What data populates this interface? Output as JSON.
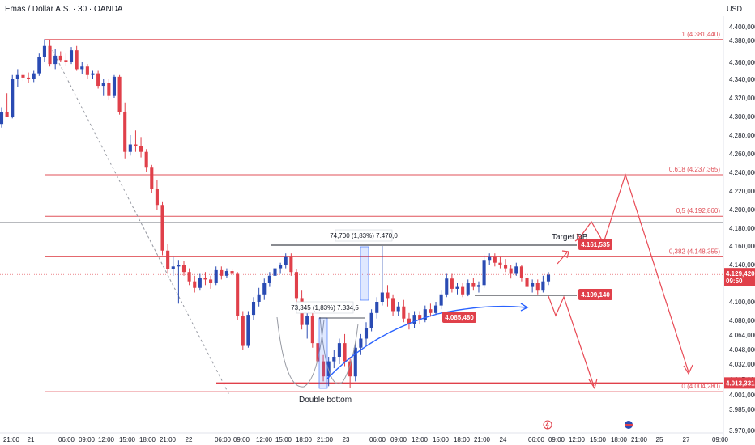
{
  "header": {
    "title": "Emas / Dollar A.S. · 30 · OANDA",
    "currency": "USD"
  },
  "chart_data": {
    "type": "candlestick",
    "y_axis": {
      "ylim": [
        3970.0,
        4410.0
      ],
      "ticks": [
        "4.400,000",
        "4.380,000",
        "4.360,000",
        "4.340,000",
        "4.320,000",
        "4.300,000",
        "4.280,000",
        "4.260,000",
        "4.240,000",
        "4.220,000",
        "4.200,000",
        "4.180,000",
        "4.160,000",
        "4.140,000",
        "4.120,000",
        "4.100,000",
        "4.080,000",
        "4.064,000",
        "4.048,000",
        "4.032,000",
        "4.017,000",
        "4.001,000",
        "3.985,000",
        "3.970,000"
      ]
    },
    "x_axis": {
      "ticks": [
        "21:00",
        "21",
        "06:00",
        "09:00",
        "12:00",
        "15:00",
        "18:00",
        "21:00",
        "22",
        "06:00",
        "09:00",
        "12:00",
        "15:00",
        "18:00",
        "21:00",
        "23",
        "06:00",
        "09:00",
        "12:00",
        "15:00",
        "18:00",
        "21:00",
        "24",
        "06:00",
        "09:00",
        "12:00",
        "15:00",
        "18:00",
        "21:00",
        "25",
        "27",
        "09:00"
      ]
    },
    "fib_levels": [
      {
        "label": "1 (4.381,440)",
        "value": 4381.44
      },
      {
        "label": "0,618 (4.237,365)",
        "value": 4237.365
      },
      {
        "label": "0,5 (4.192,860)",
        "value": 4192.86
      },
      {
        "label": "0,382 (4.148,355)",
        "value": 4148.355
      },
      {
        "label": "0 (4.004,280)",
        "value": 4004.28
      }
    ],
    "horizontal_line": 4186.0,
    "price_labels": [
      {
        "label": "4.161,535",
        "value": 4161.535
      },
      {
        "label": "4.109,140",
        "value": 4109.14
      },
      {
        "label": "4.085,480",
        "value": 4085.48
      },
      {
        "label": "4.013,331",
        "value": 4013.331
      }
    ],
    "current_price": {
      "label": "4.129,420",
      "countdown": "09:50",
      "value": 4129.42
    },
    "annotations": {
      "target": "Target DB",
      "double_bottom": "Double bottom",
      "measure_1": "74,700 (1,83%) 7.470,0",
      "measure_2": "73,345 (1,83%) 7.334,5"
    },
    "colors": {
      "up": "#2a4bb3",
      "down": "#e0404a",
      "fib": "#e0525a",
      "projection": "#e84a55",
      "curve": "#2962ff"
    },
    "candles": [
      [
        4292,
        4310,
        4288,
        4305
      ],
      [
        4305,
        4325,
        4300,
        4300
      ],
      [
        4300,
        4345,
        4298,
        4340
      ],
      [
        4340,
        4352,
        4332,
        4345
      ],
      [
        4345,
        4350,
        4338,
        4342
      ],
      [
        4342,
        4348,
        4336,
        4340
      ],
      [
        4340,
        4350,
        4337,
        4347
      ],
      [
        4347,
        4368,
        4344,
        4365
      ],
      [
        4365,
        4382,
        4360,
        4375
      ],
      [
        4375,
        4380,
        4355,
        4358
      ],
      [
        4358,
        4372,
        4352,
        4366
      ],
      [
        4366,
        4370,
        4360,
        4362
      ],
      [
        4362,
        4368,
        4356,
        4360
      ],
      [
        4360,
        4374,
        4358,
        4371
      ],
      [
        4371,
        4375,
        4350,
        4352
      ],
      [
        4352,
        4360,
        4346,
        4355
      ],
      [
        4355,
        4358,
        4340,
        4345
      ],
      [
        4345,
        4350,
        4340,
        4347
      ],
      [
        4347,
        4350,
        4330,
        4333
      ],
      [
        4333,
        4340,
        4322,
        4336
      ],
      [
        4336,
        4340,
        4318,
        4322
      ],
      [
        4322,
        4345,
        4320,
        4343
      ],
      [
        4343,
        4345,
        4302,
        4305
      ],
      [
        4305,
        4315,
        4255,
        4262
      ],
      [
        4262,
        4280,
        4258,
        4270
      ],
      [
        4270,
        4285,
        4262,
        4268
      ],
      [
        4268,
        4278,
        4256,
        4262
      ],
      [
        4262,
        4265,
        4240,
        4245
      ],
      [
        4245,
        4248,
        4218,
        4222
      ],
      [
        4222,
        4232,
        4200,
        4205
      ],
      [
        4205,
        4208,
        4150,
        4155
      ],
      [
        4155,
        4162,
        4130,
        4135
      ],
      [
        4135,
        4148,
        4128,
        4138
      ],
      [
        4138,
        4145,
        4098,
        4140
      ],
      [
        4140,
        4144,
        4128,
        4132
      ],
      [
        4132,
        4136,
        4118,
        4122
      ],
      [
        4122,
        4128,
        4110,
        4115
      ],
      [
        4115,
        4130,
        4112,
        4126
      ],
      [
        4126,
        4132,
        4118,
        4124
      ],
      [
        4124,
        4128,
        4114,
        4120
      ],
      [
        4120,
        4138,
        4118,
        4134
      ],
      [
        4134,
        4138,
        4124,
        4128
      ],
      [
        4128,
        4136,
        4126,
        4133
      ],
      [
        4133,
        4135,
        4128,
        4130
      ],
      [
        4130,
        4132,
        4080,
        4085
      ],
      [
        4085,
        4090,
        4048,
        4052
      ],
      [
        4052,
        4090,
        4050,
        4086
      ],
      [
        4086,
        4105,
        4080,
        4100
      ],
      [
        4100,
        4115,
        4095,
        4108
      ],
      [
        4108,
        4125,
        4102,
        4120
      ],
      [
        4120,
        4132,
        4116,
        4128
      ],
      [
        4128,
        4140,
        4124,
        4136
      ],
      [
        4136,
        4142,
        4130,
        4140
      ],
      [
        4140,
        4152,
        4136,
        4148
      ],
      [
        4148,
        4152,
        4128,
        4132
      ],
      [
        4132,
        4135,
        4100,
        4104
      ],
      [
        4104,
        4112,
        4070,
        4075
      ],
      [
        4075,
        4090,
        4060,
        4085
      ],
      [
        4085,
        4092,
        4050,
        4055
      ],
      [
        4055,
        4060,
        4030,
        4035
      ],
      [
        4035,
        4042,
        4015,
        4020
      ],
      [
        4020,
        4040,
        4010,
        4035
      ],
      [
        4035,
        4048,
        4028,
        4040
      ],
      [
        4040,
        4060,
        4032,
        4055
      ],
      [
        4055,
        4065,
        4030,
        4035
      ],
      [
        4035,
        4040,
        4008,
        4020
      ],
      [
        4020,
        4055,
        4015,
        4050
      ],
      [
        4050,
        4065,
        4042,
        4060
      ],
      [
        4060,
        4078,
        4052,
        4072
      ],
      [
        4072,
        4092,
        4068,
        4088
      ],
      [
        4088,
        4105,
        4082,
        4100
      ],
      [
        4100,
        4160,
        4096,
        4110
      ],
      [
        4110,
        4118,
        4095,
        4104
      ],
      [
        4104,
        4108,
        4085,
        4090
      ],
      [
        4090,
        4100,
        4085,
        4095
      ],
      [
        4095,
        4102,
        4078,
        4082
      ],
      [
        4082,
        4088,
        4070,
        4076
      ],
      [
        4076,
        4090,
        4072,
        4086
      ],
      [
        4086,
        4090,
        4076,
        4080
      ],
      [
        4080,
        4096,
        4078,
        4092
      ],
      [
        4092,
        4098,
        4084,
        4088
      ],
      [
        4088,
        4100,
        4086,
        4096
      ],
      [
        4096,
        4112,
        4092,
        4108
      ],
      [
        4108,
        4130,
        4105,
        4125
      ],
      [
        4125,
        4130,
        4110,
        4114
      ],
      [
        4114,
        4120,
        4108,
        4116
      ],
      [
        4116,
        4120,
        4105,
        4108
      ],
      [
        4108,
        4124,
        4106,
        4120
      ],
      [
        4120,
        4126,
        4112,
        4116
      ],
      [
        4116,
        4122,
        4110,
        4118
      ],
      [
        4118,
        4150,
        4115,
        4145
      ],
      [
        4145,
        4152,
        4140,
        4148
      ],
      [
        4148,
        4152,
        4138,
        4142
      ],
      [
        4142,
        4148,
        4136,
        4140
      ],
      [
        4140,
        4146,
        4132,
        4136
      ],
      [
        4136,
        4140,
        4125,
        4130
      ],
      [
        4130,
        4142,
        4128,
        4138
      ],
      [
        4138,
        4140,
        4122,
        4126
      ],
      [
        4126,
        4130,
        4112,
        4116
      ],
      [
        4116,
        4124,
        4110,
        4120
      ],
      [
        4120,
        4124,
        4108,
        4112
      ],
      [
        4112,
        4128,
        4110,
        4122
      ],
      [
        4122,
        4132,
        4118,
        4129
      ]
    ]
  }
}
